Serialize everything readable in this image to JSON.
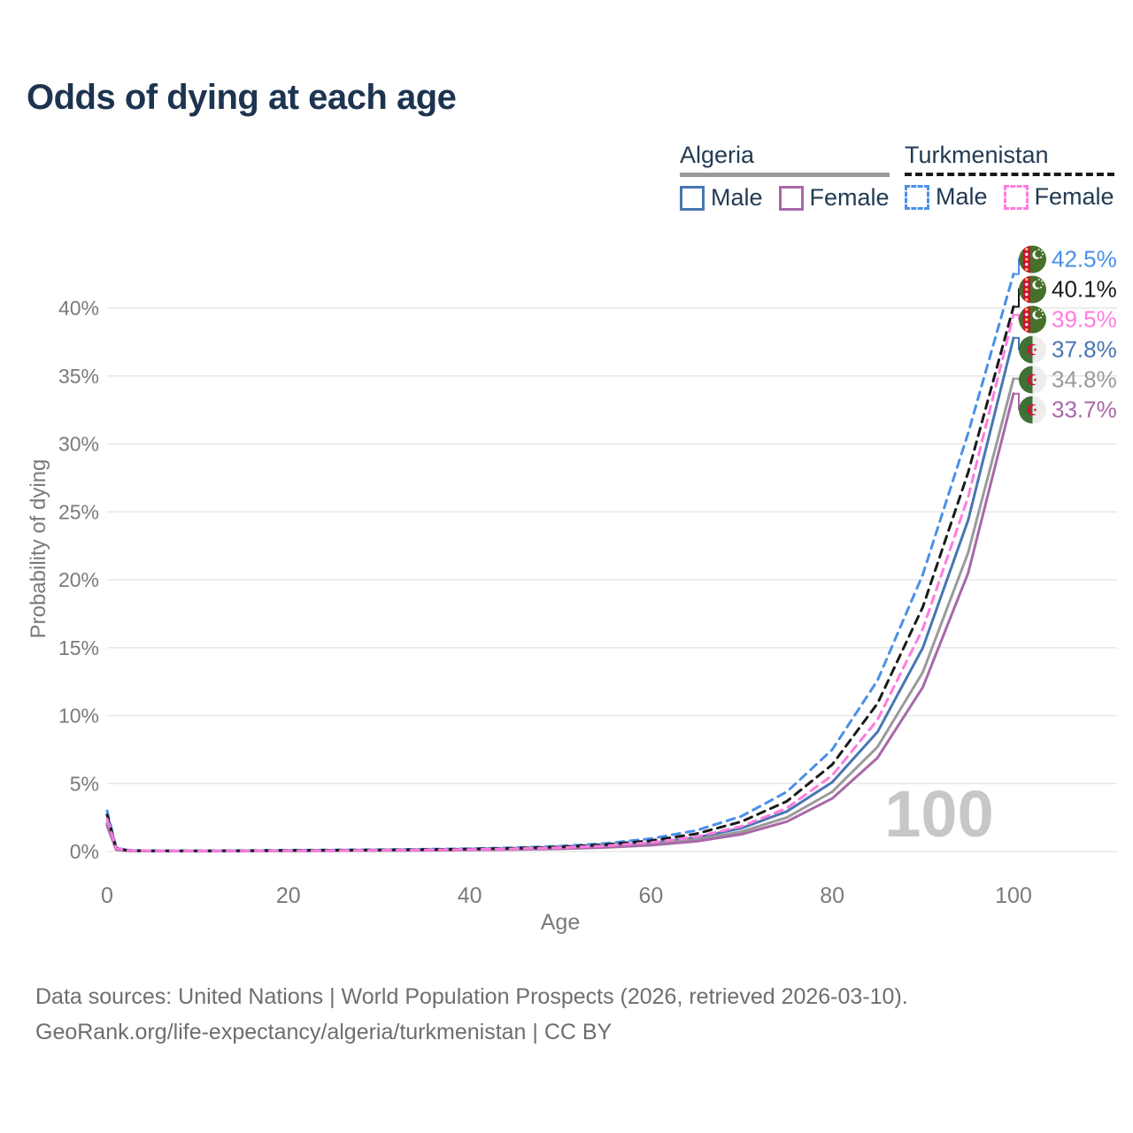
{
  "header": {
    "title": "Odds of dying at each age"
  },
  "legend": {
    "groups": [
      {
        "title": "Algeria",
        "line_style": "solid",
        "underline_color": "#9a9a9a",
        "items": [
          {
            "label": "Male",
            "color": "#4876b2",
            "dash": false
          },
          {
            "label": "Female",
            "color": "#a868a8",
            "dash": false
          }
        ]
      },
      {
        "title": "Turkmenistan",
        "line_style": "dashed",
        "underline_color": "#1a1a1a",
        "items": [
          {
            "label": "Male",
            "color": "#4a90e8",
            "dash": true
          },
          {
            "label": "Female",
            "color": "#ff7bdf",
            "dash": true
          }
        ]
      }
    ]
  },
  "chart_data": {
    "type": "line",
    "title": "Odds of dying at each age",
    "xlabel": "Age",
    "ylabel": "Probability of dying",
    "xlim": [
      0,
      100
    ],
    "ylim": [
      0,
      44
    ],
    "grid": "horizontal",
    "legend_position": "top-right",
    "watermark": "100",
    "x_tick_values": [
      0,
      20,
      40,
      60,
      80,
      100
    ],
    "x_tick_labels": [
      "0",
      "20",
      "40",
      "60",
      "80",
      "100"
    ],
    "y_tick_values": [
      0,
      5,
      10,
      15,
      20,
      25,
      30,
      35,
      40
    ],
    "y_tick_labels": [
      "0%",
      "5%",
      "10%",
      "15%",
      "20%",
      "25%",
      "30%",
      "35%",
      "40%"
    ],
    "ages": [
      0,
      1,
      2,
      3,
      5,
      10,
      15,
      20,
      25,
      30,
      35,
      40,
      45,
      50,
      55,
      60,
      65,
      70,
      75,
      80,
      85,
      90,
      95,
      100
    ],
    "series": [
      {
        "id": "turkmenistan-male",
        "name": "Turkmenistan Male",
        "country": "Turkmenistan",
        "sex": "male",
        "flag": "turkmenistan",
        "color": "#4a90e8",
        "dash": true,
        "end_value": 42.5,
        "end_label": "42.5%",
        "values": [
          3.0,
          0.3,
          0.12,
          0.08,
          0.06,
          0.05,
          0.07,
          0.1,
          0.12,
          0.14,
          0.17,
          0.21,
          0.28,
          0.4,
          0.6,
          0.95,
          1.55,
          2.6,
          4.4,
          7.5,
          12.6,
          20.4,
          30.8,
          42.5
        ]
      },
      {
        "id": "turkmenistan-both",
        "name": "Turkmenistan",
        "country": "Turkmenistan",
        "sex": "both",
        "flag": "turkmenistan",
        "color": "#1a1a1a",
        "dash": true,
        "end_value": 40.1,
        "end_label": "40.1%",
        "values": [
          2.7,
          0.27,
          0.11,
          0.07,
          0.055,
          0.045,
          0.06,
          0.085,
          0.1,
          0.12,
          0.145,
          0.18,
          0.24,
          0.34,
          0.51,
          0.8,
          1.3,
          2.2,
          3.7,
          6.4,
          10.9,
          18.0,
          27.9,
          40.1
        ]
      },
      {
        "id": "turkmenistan-female",
        "name": "Turkmenistan Female",
        "country": "Turkmenistan",
        "sex": "female",
        "flag": "turkmenistan",
        "color": "#ff7bdf",
        "dash": true,
        "end_value": 39.5,
        "end_label": "39.5%",
        "values": [
          2.4,
          0.24,
          0.1,
          0.065,
          0.05,
          0.04,
          0.05,
          0.065,
          0.08,
          0.095,
          0.12,
          0.15,
          0.2,
          0.28,
          0.42,
          0.66,
          1.08,
          1.85,
          3.2,
          5.6,
          9.7,
          16.4,
          26.1,
          39.5
        ]
      },
      {
        "id": "algeria-male",
        "name": "Algeria Male",
        "country": "Algeria",
        "sex": "male",
        "flag": "algeria",
        "color": "#4876b2",
        "dash": false,
        "end_value": 37.8,
        "end_label": "37.8%",
        "values": [
          2.1,
          0.16,
          0.07,
          0.05,
          0.04,
          0.035,
          0.05,
          0.07,
          0.085,
          0.1,
          0.12,
          0.15,
          0.2,
          0.28,
          0.41,
          0.63,
          1.02,
          1.72,
          2.95,
          5.1,
          8.8,
          15.0,
          24.4,
          37.8
        ]
      },
      {
        "id": "algeria-both",
        "name": "Algeria",
        "country": "Algeria",
        "sex": "both",
        "flag": "algeria",
        "color": "#9a9a9a",
        "dash": false,
        "end_value": 34.8,
        "end_label": "34.8%",
        "values": [
          2.0,
          0.15,
          0.065,
          0.045,
          0.035,
          0.03,
          0.04,
          0.055,
          0.07,
          0.085,
          0.1,
          0.13,
          0.17,
          0.24,
          0.35,
          0.54,
          0.87,
          1.46,
          2.5,
          4.4,
          7.7,
          13.2,
          22.0,
          34.8
        ]
      },
      {
        "id": "algeria-female",
        "name": "Algeria Female",
        "country": "Algeria",
        "sex": "female",
        "flag": "algeria",
        "color": "#a868a8",
        "dash": false,
        "end_value": 33.7,
        "end_label": "33.7%",
        "values": [
          1.9,
          0.14,
          0.06,
          0.04,
          0.03,
          0.025,
          0.035,
          0.045,
          0.055,
          0.07,
          0.085,
          0.11,
          0.145,
          0.2,
          0.3,
          0.46,
          0.75,
          1.27,
          2.2,
          3.9,
          6.9,
          12.1,
          20.5,
          33.7
        ]
      }
    ],
    "colors": {
      "grid": "#e7e7e7",
      "axis_text": "#7a7a7a",
      "watermark": "#c7c7c7",
      "title_text": "#1d3450",
      "legend_text": "#233b53",
      "footer_text": "#6e6e6e"
    }
  },
  "footer": {
    "line1": "Data sources: United Nations | World Population Prospects (2026, retrieved 2026-03-10).",
    "line2": "GeoRank.org/life-expectancy/algeria/turkmenistan | CC BY"
  }
}
